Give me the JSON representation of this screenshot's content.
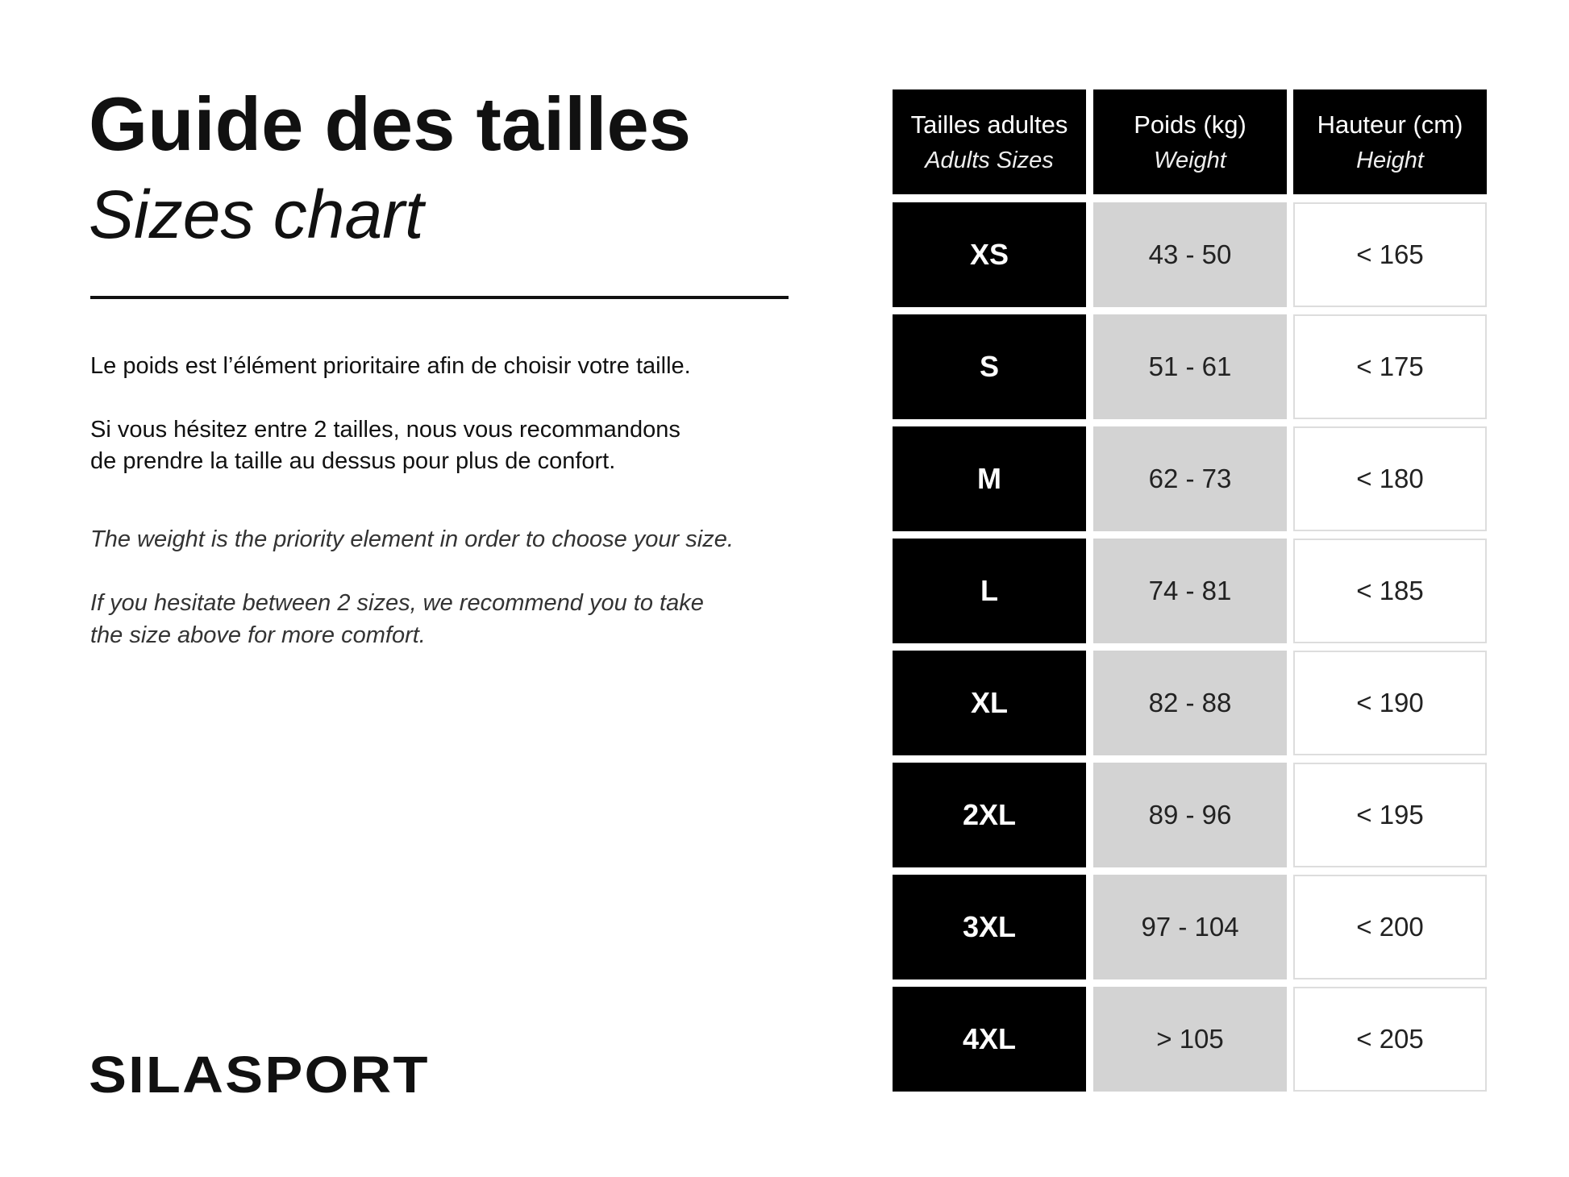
{
  "header": {
    "title": "Guide des tailles",
    "subtitle": "Sizes chart"
  },
  "text": {
    "fr": [
      "Le poids est l’élément prioritaire afin de choisir votre taille.",
      "Si vous hésitez entre 2 tailles, nous vous recommandons",
      "de prendre la taille au dessus pour plus de confort."
    ],
    "en": [
      "The weight is the priority element in order to choose your size.",
      "If you hesitate between 2 sizes, we recommend you to take",
      "the size above for more comfort."
    ]
  },
  "logo": "SILASPORT",
  "table": {
    "headers": [
      [
        "Tailles adultes",
        "Adults Sizes"
      ],
      [
        "Poids (kg)",
        "Weight"
      ],
      [
        "Hauteur (cm)",
        "Height"
      ]
    ],
    "rows": [
      [
        "XS",
        "43 - 50",
        "< 165"
      ],
      [
        "S",
        "51 - 61",
        "< 175"
      ],
      [
        "M",
        "62 - 73",
        "< 180"
      ],
      [
        "L",
        "74 - 81",
        "< 185"
      ],
      [
        "XL",
        "82 - 88",
        "< 190"
      ],
      [
        "2XL",
        "89 - 96",
        "< 195"
      ],
      [
        "3XL",
        "97 - 104",
        "< 200"
      ],
      [
        "4XL",
        "> 105",
        "< 205"
      ]
    ]
  }
}
